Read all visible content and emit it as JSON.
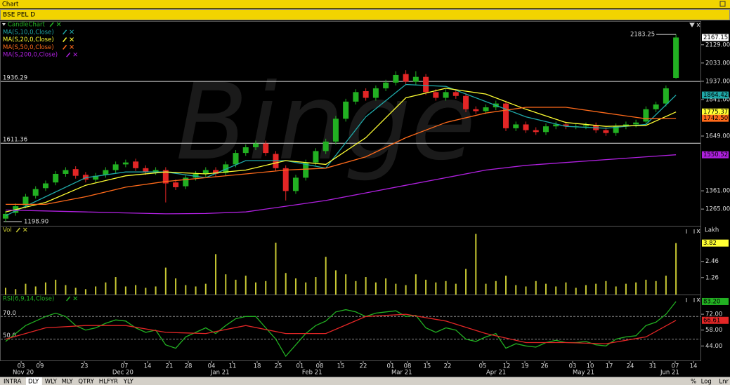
{
  "window_title": "Chart",
  "symbol": "BSE PEL D",
  "watermark": "Binge",
  "tabs": [
    "INTRA",
    "DLY",
    "WLY",
    "MLY",
    "QTRY",
    "HLFYR",
    "YLY"
  ],
  "active_tab_index": 1,
  "scale_buttons": [
    "%",
    "Log",
    "Lnr"
  ],
  "chart_data": [
    {
      "type": "candlestick",
      "xlim": [
        -0.35,
        69.45
      ],
      "ylim": [
        1177,
        2250
      ],
      "yticks": [
        {
          "value": 2129,
          "label": "2129.00"
        },
        {
          "value": 2033,
          "label": "2033.00"
        },
        {
          "value": 1937,
          "label": "1937.00"
        },
        {
          "value": 1841,
          "label": "1841.00"
        },
        {
          "value": 1649,
          "label": "1649.00"
        },
        {
          "value": 1361,
          "label": "1361.00"
        },
        {
          "value": 1265,
          "label": "1265.00"
        }
      ],
      "hlines": [
        1936.29,
        1611.36
      ],
      "low_marker": {
        "value": 1198.9,
        "label": "1198.90"
      },
      "series": [
        {
          "name": "CandleChart",
          "color_up": "#22b022",
          "color_down": "#e32626",
          "tag_color": "#ffffff",
          "x": [
            0,
            1,
            2,
            3,
            4,
            5,
            6,
            7,
            8,
            9,
            10,
            11,
            12,
            13,
            14,
            15,
            16,
            17,
            18,
            19,
            20,
            21,
            22,
            23,
            24,
            25,
            26,
            27,
            28,
            29,
            30,
            31,
            32,
            33,
            34,
            35,
            36,
            37,
            38,
            39,
            40,
            41,
            42,
            43,
            44,
            45,
            46,
            47,
            48,
            49,
            50,
            51,
            52,
            53,
            54,
            55,
            56,
            57,
            58,
            59,
            60,
            61,
            62,
            63,
            64,
            65,
            66,
            67
          ],
          "open": [
            1215,
            1245,
            1285,
            1335,
            1375,
            1405,
            1450,
            1475,
            1445,
            1420,
            1445,
            1470,
            1500,
            1515,
            1480,
            1460,
            1470,
            1405,
            1385,
            1430,
            1450,
            1470,
            1455,
            1500,
            1560,
            1590,
            1610,
            1555,
            1480,
            1360,
            1430,
            1510,
            1570,
            1620,
            1740,
            1830,
            1885,
            1850,
            1900,
            1930,
            1975,
            1935,
            1960,
            1880,
            1850,
            1880,
            1860,
            1790,
            1780,
            1800,
            1820,
            1690,
            1710,
            1680,
            1670,
            1700,
            1710,
            1700,
            1700,
            1705,
            1680,
            1665,
            1700,
            1710,
            1725,
            1790,
            1820,
            1955
          ],
          "high": [
            1255,
            1295,
            1345,
            1385,
            1415,
            1465,
            1485,
            1490,
            1460,
            1455,
            1485,
            1515,
            1525,
            1530,
            1495,
            1485,
            1485,
            1420,
            1445,
            1465,
            1485,
            1485,
            1515,
            1575,
            1605,
            1625,
            1625,
            1570,
            1495,
            1445,
            1525,
            1585,
            1635,
            1755,
            1845,
            1895,
            1900,
            1915,
            1945,
            1990,
            1995,
            1990,
            1975,
            1895,
            1895,
            1895,
            1875,
            1805,
            1815,
            1835,
            1835,
            1725,
            1725,
            1695,
            1715,
            1725,
            1725,
            1715,
            1720,
            1720,
            1695,
            1715,
            1725,
            1735,
            1805,
            1830,
            1915,
            2183.25
          ],
          "low": [
            1198.9,
            1230,
            1270,
            1320,
            1360,
            1390,
            1435,
            1425,
            1405,
            1405,
            1430,
            1455,
            1485,
            1465,
            1445,
            1445,
            1300,
            1365,
            1370,
            1415,
            1435,
            1435,
            1440,
            1485,
            1545,
            1575,
            1545,
            1465,
            1310,
            1345,
            1415,
            1495,
            1555,
            1605,
            1725,
            1815,
            1835,
            1835,
            1885,
            1915,
            1920,
            1920,
            1865,
            1835,
            1835,
            1845,
            1775,
            1765,
            1765,
            1785,
            1675,
            1675,
            1665,
            1655,
            1655,
            1685,
            1685,
            1685,
            1685,
            1665,
            1650,
            1650,
            1685,
            1695,
            1710,
            1775,
            1805,
            1950
          ],
          "close": [
            1240,
            1280,
            1330,
            1370,
            1400,
            1450,
            1470,
            1440,
            1420,
            1440,
            1470,
            1500,
            1510,
            1480,
            1460,
            1470,
            1400,
            1380,
            1430,
            1450,
            1470,
            1450,
            1500,
            1560,
            1590,
            1610,
            1560,
            1480,
            1360,
            1430,
            1510,
            1570,
            1620,
            1740,
            1830,
            1880,
            1850,
            1900,
            1930,
            1970,
            1935,
            1960,
            1880,
            1850,
            1880,
            1860,
            1790,
            1780,
            1800,
            1820,
            1690,
            1710,
            1680,
            1670,
            1700,
            1710,
            1700,
            1700,
            1705,
            1680,
            1665,
            1700,
            1710,
            1720,
            1790,
            1815,
            1900,
            2167.15
          ]
        },
        {
          "name": "MA(S,10,0,Close)",
          "color": "#1fa8a8",
          "x": [
            0,
            4,
            8,
            12,
            16,
            20,
            24,
            28,
            32,
            36,
            40,
            44,
            48,
            52,
            56,
            60,
            64,
            67
          ],
          "values": [
            1230,
            1330,
            1430,
            1460,
            1460,
            1430,
            1520,
            1520,
            1480,
            1750,
            1920,
            1910,
            1830,
            1750,
            1700,
            1690,
            1710,
            1864.42
          ]
        },
        {
          "name": "MA(S,20,0,Close)",
          "color": "#ffff33",
          "x": [
            0,
            4,
            8,
            12,
            16,
            20,
            24,
            28,
            32,
            36,
            40,
            44,
            48,
            52,
            56,
            60,
            64,
            67
          ],
          "values": [
            1250,
            1300,
            1390,
            1440,
            1460,
            1450,
            1470,
            1520,
            1500,
            1640,
            1850,
            1900,
            1870,
            1790,
            1720,
            1700,
            1705,
            1775.37
          ]
        },
        {
          "name": "MA(S,50,0,Close)",
          "color": "#ff6a1a",
          "x": [
            0,
            4,
            8,
            12,
            16,
            20,
            24,
            28,
            32,
            36,
            40,
            44,
            48,
            52,
            56,
            60,
            64,
            67
          ],
          "values": [
            1290,
            1290,
            1330,
            1380,
            1410,
            1430,
            1450,
            1470,
            1480,
            1540,
            1640,
            1720,
            1770,
            1800,
            1800,
            1770,
            1740,
            1742.5
          ],
          "last_label": "1742.50"
        },
        {
          "name": "MA(S,200,0,Close)",
          "color": "#b020e0",
          "x": [
            0,
            4,
            8,
            12,
            16,
            20,
            24,
            28,
            32,
            36,
            40,
            44,
            48,
            52,
            56,
            60,
            64,
            67
          ],
          "values": [
            1260,
            1255,
            1250,
            1245,
            1240,
            1242,
            1250,
            1280,
            1310,
            1350,
            1390,
            1430,
            1470,
            1495,
            1510,
            1525,
            1540,
            1550.52
          ]
        }
      ]
    },
    {
      "type": "bar",
      "unit": "Lakh",
      "xlim": [
        -0.35,
        69.45
      ],
      "ylim": [
        0,
        5.05
      ],
      "yticks": [
        1.26,
        2.46
      ],
      "series": [
        {
          "name": "Vol",
          "color": "#c8c832",
          "tag_color": "#ffff33",
          "x": [
            0,
            1,
            2,
            3,
            4,
            5,
            6,
            7,
            8,
            9,
            10,
            11,
            12,
            13,
            14,
            15,
            16,
            17,
            18,
            19,
            20,
            21,
            22,
            23,
            24,
            25,
            26,
            27,
            28,
            29,
            30,
            31,
            32,
            33,
            34,
            35,
            36,
            37,
            38,
            39,
            40,
            41,
            42,
            43,
            44,
            45,
            46,
            47,
            48,
            49,
            50,
            51,
            52,
            53,
            54,
            55,
            56,
            57,
            58,
            59,
            60,
            61,
            62,
            63,
            64,
            65,
            66,
            67
          ],
          "values": [
            0.5,
            0.4,
            0.8,
            0.6,
            0.9,
            1.1,
            0.7,
            0.5,
            0.4,
            0.6,
            0.9,
            1.3,
            0.6,
            0.7,
            0.5,
            0.6,
            2.0,
            1.2,
            0.7,
            0.6,
            0.8,
            3.0,
            1.5,
            1.1,
            1.4,
            0.9,
            1.0,
            3.85,
            1.6,
            1.2,
            0.9,
            1.3,
            2.8,
            1.8,
            1.5,
            1.0,
            1.3,
            0.9,
            1.2,
            0.8,
            0.7,
            1.5,
            1.1,
            0.9,
            1.0,
            0.8,
            1.9,
            4.5,
            0.8,
            1.0,
            1.4,
            0.7,
            0.6,
            1.0,
            0.8,
            0.6,
            0.9,
            0.5,
            0.7,
            0.8,
            1.0,
            0.6,
            0.8,
            0.9,
            1.1,
            1.0,
            1.4,
            3.82
          ]
        }
      ]
    },
    {
      "type": "line",
      "xlim": [
        -0.35,
        69.45
      ],
      "ylim": [
        30.6,
        88.75
      ],
      "yticks": [
        {
          "value": 72,
          "label": "72.00"
        },
        {
          "value": 58,
          "label": "58.00"
        },
        {
          "value": 44,
          "label": "44.00"
        }
      ],
      "hlines": [
        {
          "value": 70,
          "label": "70.0"
        },
        {
          "value": 50,
          "label": "50.0"
        }
      ],
      "xticks": [
        {
          "value": 1.55,
          "label": "03"
        },
        {
          "value": 3.44,
          "label": "09"
        },
        {
          "value": 7.87,
          "label": "23"
        },
        {
          "value": 11.87,
          "label": "07"
        },
        {
          "value": 14.19,
          "label": "14"
        },
        {
          "value": 16.36,
          "label": "21"
        },
        {
          "value": 18.26,
          "label": "28"
        },
        {
          "value": 20.58,
          "label": "04"
        },
        {
          "value": 22.68,
          "label": "11"
        },
        {
          "value": 25.14,
          "label": "18"
        },
        {
          "value": 27.25,
          "label": "25"
        },
        {
          "value": 29.42,
          "label": "01"
        },
        {
          "value": 31.39,
          "label": "08"
        },
        {
          "value": 33.5,
          "label": "15"
        },
        {
          "value": 35.74,
          "label": "22"
        },
        {
          "value": 38.48,
          "label": "01"
        },
        {
          "value": 40.17,
          "label": "08"
        },
        {
          "value": 42.13,
          "label": "15"
        },
        {
          "value": 44.17,
          "label": "22"
        },
        {
          "value": 47.68,
          "label": "05"
        },
        {
          "value": 50.07,
          "label": "12"
        },
        {
          "value": 51.9,
          "label": "19"
        },
        {
          "value": 53.86,
          "label": "26"
        },
        {
          "value": 56.67,
          "label": "03"
        },
        {
          "value": 58.43,
          "label": "10"
        },
        {
          "value": 60.32,
          "label": "17"
        },
        {
          "value": 62.43,
          "label": "24"
        },
        {
          "value": 64.68,
          "label": "31"
        },
        {
          "value": 66.92,
          "label": "07"
        },
        {
          "value": 68.75,
          "label": "14"
        }
      ],
      "month_ticks": [
        {
          "value": 0.7,
          "label": "Nov 20"
        },
        {
          "value": 10.67,
          "label": "Dec 20"
        },
        {
          "value": 20.5,
          "label": "Jan 21"
        },
        {
          "value": 29.63,
          "label": "Feb 21"
        },
        {
          "value": 38.55,
          "label": "Mar 21"
        },
        {
          "value": 48.03,
          "label": "Apr 21"
        },
        {
          "value": 56.67,
          "label": "May 21"
        },
        {
          "value": 65.45,
          "label": "Jun 21"
        }
      ],
      "series": [
        {
          "name": "RSI(6,9,14,Close)",
          "color": "#22b022",
          "x": [
            0,
            1,
            2,
            3,
            4,
            5,
            6,
            7,
            8,
            9,
            10,
            11,
            12,
            13,
            14,
            15,
            16,
            17,
            18,
            19,
            20,
            21,
            22,
            23,
            24,
            25,
            26,
            27,
            28,
            29,
            30,
            31,
            32,
            33,
            34,
            35,
            36,
            37,
            38,
            39,
            40,
            41,
            42,
            43,
            44,
            45,
            46,
            47,
            48,
            49,
            50,
            51,
            52,
            53,
            54,
            55,
            56,
            57,
            58,
            59,
            60,
            61,
            62,
            63,
            64,
            65,
            66,
            67
          ],
          "values": [
            48,
            55,
            62,
            66,
            70,
            73,
            70,
            62,
            58,
            60,
            64,
            67,
            66,
            60,
            56,
            58,
            45,
            42,
            52,
            56,
            60,
            55,
            62,
            68,
            70,
            70,
            60,
            50,
            35,
            45,
            55,
            62,
            66,
            74,
            76,
            74,
            70,
            73,
            74,
            75,
            70,
            71,
            60,
            56,
            60,
            58,
            50,
            48,
            52,
            55,
            42,
            46,
            44,
            43,
            47,
            49,
            47,
            47,
            48,
            45,
            44,
            50,
            52,
            53,
            62,
            65,
            72,
            83.2
          ],
          "last_label": "83.20"
        },
        {
          "color": "#e32626",
          "x": [
            0,
            4,
            8,
            12,
            16,
            20,
            24,
            28,
            32,
            36,
            40,
            44,
            48,
            52,
            56,
            60,
            64,
            67
          ],
          "values": [
            50,
            60,
            62,
            62,
            56,
            55,
            62,
            55,
            55,
            70,
            72,
            66,
            55,
            47,
            47,
            46,
            52,
            66.61
          ]
        }
      ]
    }
  ]
}
